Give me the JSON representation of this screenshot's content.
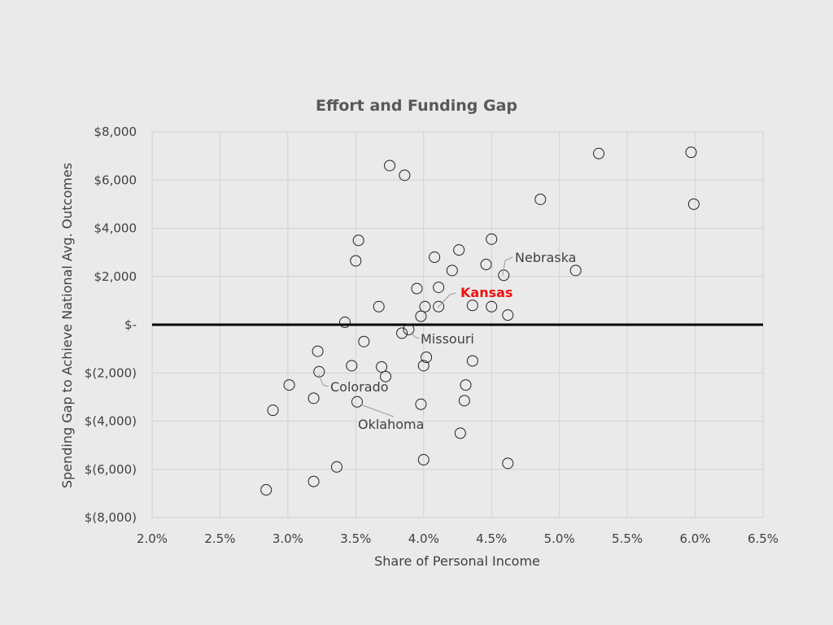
{
  "chart_data": {
    "type": "scatter",
    "title": "Effort and Funding Gap",
    "xlabel": "Share of Personal Income",
    "ylabel": "Spending Gap to Achieve National Avg. Outcomes",
    "xlim": [
      0.02,
      0.065
    ],
    "ylim": [
      -8000,
      8000
    ],
    "x_ticks": [
      0.02,
      0.025,
      0.03,
      0.035,
      0.04,
      0.045,
      0.05,
      0.055,
      0.06,
      0.065
    ],
    "x_tick_labels": [
      "2.0%",
      "2.5%",
      "3.0%",
      "3.5%",
      "4.0%",
      "4.5%",
      "5.0%",
      "5.5%",
      "6.0%",
      "6.5%"
    ],
    "y_ticks": [
      8000,
      6000,
      4000,
      2000,
      0,
      -2000,
      -4000,
      -6000,
      -8000
    ],
    "y_tick_labels": [
      "$8,000",
      "$6,000",
      "$4,000",
      "$2,000",
      "$-",
      "$(2,000)",
      "$(4,000)",
      "$(6,000)",
      "$(8,000)"
    ],
    "grid": true,
    "reference_line_y": 0,
    "series": [
      {
        "points": [
          {
            "x": 0.0375,
            "y": 6600
          },
          {
            "x": 0.0386,
            "y": 6200
          },
          {
            "x": 0.0529,
            "y": 7100
          },
          {
            "x": 0.0597,
            "y": 7150
          },
          {
            "x": 0.0486,
            "y": 5200
          },
          {
            "x": 0.0599,
            "y": 5000
          },
          {
            "x": 0.0352,
            "y": 3500
          },
          {
            "x": 0.045,
            "y": 3550
          },
          {
            "x": 0.0426,
            "y": 3100
          },
          {
            "x": 0.035,
            "y": 2650
          },
          {
            "x": 0.0408,
            "y": 2800
          },
          {
            "x": 0.0446,
            "y": 2500
          },
          {
            "x": 0.0421,
            "y": 2250
          },
          {
            "x": 0.0512,
            "y": 2250
          },
          {
            "x": 0.0459,
            "y": 2050
          },
          {
            "x": 0.0395,
            "y": 1500
          },
          {
            "x": 0.0411,
            "y": 1550
          },
          {
            "x": 0.0367,
            "y": 750
          },
          {
            "x": 0.0401,
            "y": 750
          },
          {
            "x": 0.0411,
            "y": 750
          },
          {
            "x": 0.0436,
            "y": 800
          },
          {
            "x": 0.045,
            "y": 750
          },
          {
            "x": 0.0398,
            "y": 350
          },
          {
            "x": 0.0462,
            "y": 400
          },
          {
            "x": 0.0342,
            "y": 100
          },
          {
            "x": 0.0384,
            "y": -350
          },
          {
            "x": 0.0389,
            "y": -200
          },
          {
            "x": 0.0356,
            "y": -700
          },
          {
            "x": 0.0322,
            "y": -1100
          },
          {
            "x": 0.0347,
            "y": -1700
          },
          {
            "x": 0.0369,
            "y": -1750
          },
          {
            "x": 0.0372,
            "y": -2150
          },
          {
            "x": 0.0402,
            "y": -1350
          },
          {
            "x": 0.04,
            "y": -1700
          },
          {
            "x": 0.0436,
            "y": -1500
          },
          {
            "x": 0.0323,
            "y": -1950
          },
          {
            "x": 0.0301,
            "y": -2500
          },
          {
            "x": 0.0431,
            "y": -2500
          },
          {
            "x": 0.0319,
            "y": -3050
          },
          {
            "x": 0.0351,
            "y": -3200
          },
          {
            "x": 0.0398,
            "y": -3300
          },
          {
            "x": 0.043,
            "y": -3150
          },
          {
            "x": 0.0289,
            "y": -3550
          },
          {
            "x": 0.0427,
            "y": -4500
          },
          {
            "x": 0.0336,
            "y": -5900
          },
          {
            "x": 0.04,
            "y": -5600
          },
          {
            "x": 0.0462,
            "y": -5750
          },
          {
            "x": 0.0319,
            "y": -6500
          },
          {
            "x": 0.0284,
            "y": -6850
          }
        ]
      }
    ],
    "annotations": [
      {
        "label": "Nebraska",
        "highlight": false
      },
      {
        "label": "Kansas",
        "highlight": true
      },
      {
        "label": "Missouri",
        "highlight": false
      },
      {
        "label": "Colorado",
        "highlight": false
      },
      {
        "label": "Oklahoma",
        "highlight": false
      }
    ],
    "colors": {
      "background": "#eaeaea",
      "highlight": "#ee1111",
      "reference_line": "#000000",
      "marker": "#222222"
    }
  }
}
